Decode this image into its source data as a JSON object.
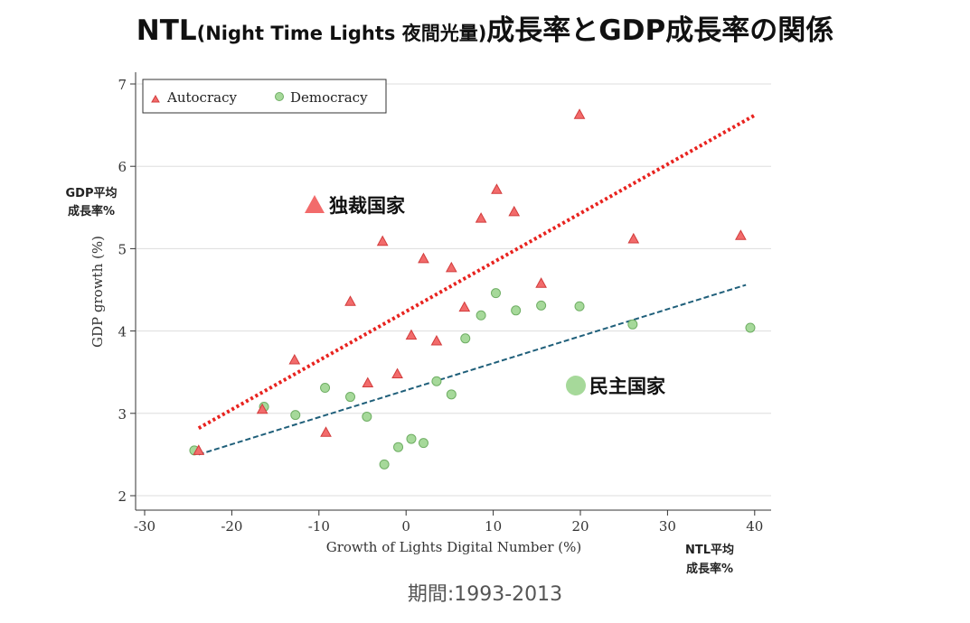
{
  "title": {
    "prefix": "NTL",
    "inner": "(Night Time Lights 夜間光量)",
    "suffix": "成長率とGDP成長率の関係"
  },
  "period_note": "期間:1993-2013",
  "annotations": {
    "y_side_label_line1": "GDP平均",
    "y_side_label_line2": "成長率%",
    "x_side_label_line1": "NTL平均",
    "x_side_label_line2": "成長率%",
    "autocracy_callout": "独裁国家",
    "democracy_callout": "民主国家"
  },
  "colors": {
    "autocracy": "#f26b6b",
    "autocracy_stroke": "#d23c3c",
    "democracy": "#a6d99a",
    "democracy_stroke": "#6fae64",
    "autocracy_fit": "#e8231f",
    "democracy_fit": "#1f5f7a",
    "plot_bg": "#ffffff",
    "grid": "#dddddd"
  },
  "chart_data": {
    "type": "scatter",
    "xlabel": "Growth of Lights Digital Number (%)",
    "ylabel": "GDP growth (%)",
    "xlim": [
      -31,
      42
    ],
    "ylim": [
      1.75,
      7.1
    ],
    "x_ticks": [
      -30,
      -20,
      -10,
      0,
      10,
      20,
      30,
      40
    ],
    "y_ticks": [
      2,
      3,
      4,
      5,
      6,
      7
    ],
    "grid": true,
    "legend_position": "top-left",
    "series": [
      {
        "name": "Autocracy",
        "marker": "triangle",
        "points": [
          [
            -23.8,
            2.55
          ],
          [
            -16.5,
            3.05
          ],
          [
            -12.8,
            3.65
          ],
          [
            -9.2,
            2.77
          ],
          [
            -6.4,
            4.36
          ],
          [
            -4.4,
            3.37
          ],
          [
            -2.7,
            5.09
          ],
          [
            -1.0,
            3.48
          ],
          [
            0.6,
            3.95
          ],
          [
            2.0,
            4.88
          ],
          [
            3.5,
            3.88
          ],
          [
            5.2,
            4.77
          ],
          [
            6.7,
            4.29
          ],
          [
            8.6,
            5.37
          ],
          [
            10.4,
            5.72
          ],
          [
            12.4,
            5.45
          ],
          [
            15.5,
            4.58
          ],
          [
            19.9,
            6.63
          ],
          [
            26.1,
            5.12
          ],
          [
            38.4,
            5.16
          ]
        ]
      },
      {
        "name": "Democracy",
        "marker": "circle",
        "points": [
          [
            -24.3,
            2.55
          ],
          [
            -16.3,
            3.08
          ],
          [
            -12.7,
            2.98
          ],
          [
            -9.3,
            3.31
          ],
          [
            -6.4,
            3.2
          ],
          [
            -4.5,
            2.96
          ],
          [
            -2.5,
            2.38
          ],
          [
            -0.9,
            2.59
          ],
          [
            0.6,
            2.69
          ],
          [
            2.0,
            2.64
          ],
          [
            3.5,
            3.39
          ],
          [
            5.2,
            3.23
          ],
          [
            6.8,
            3.91
          ],
          [
            8.6,
            4.19
          ],
          [
            10.3,
            4.46
          ],
          [
            12.6,
            4.25
          ],
          [
            15.5,
            4.31
          ],
          [
            19.9,
            4.3
          ],
          [
            26.0,
            4.08
          ],
          [
            39.5,
            4.04
          ]
        ]
      }
    ],
    "fit_lines": [
      {
        "series": "Autocracy",
        "style": "dotted",
        "from": [
          -23.8,
          2.82
        ],
        "to": [
          40.0,
          6.62
        ]
      },
      {
        "series": "Democracy",
        "style": "dashed",
        "from": [
          -23.8,
          2.5
        ],
        "to": [
          39.0,
          4.56
        ]
      }
    ]
  }
}
